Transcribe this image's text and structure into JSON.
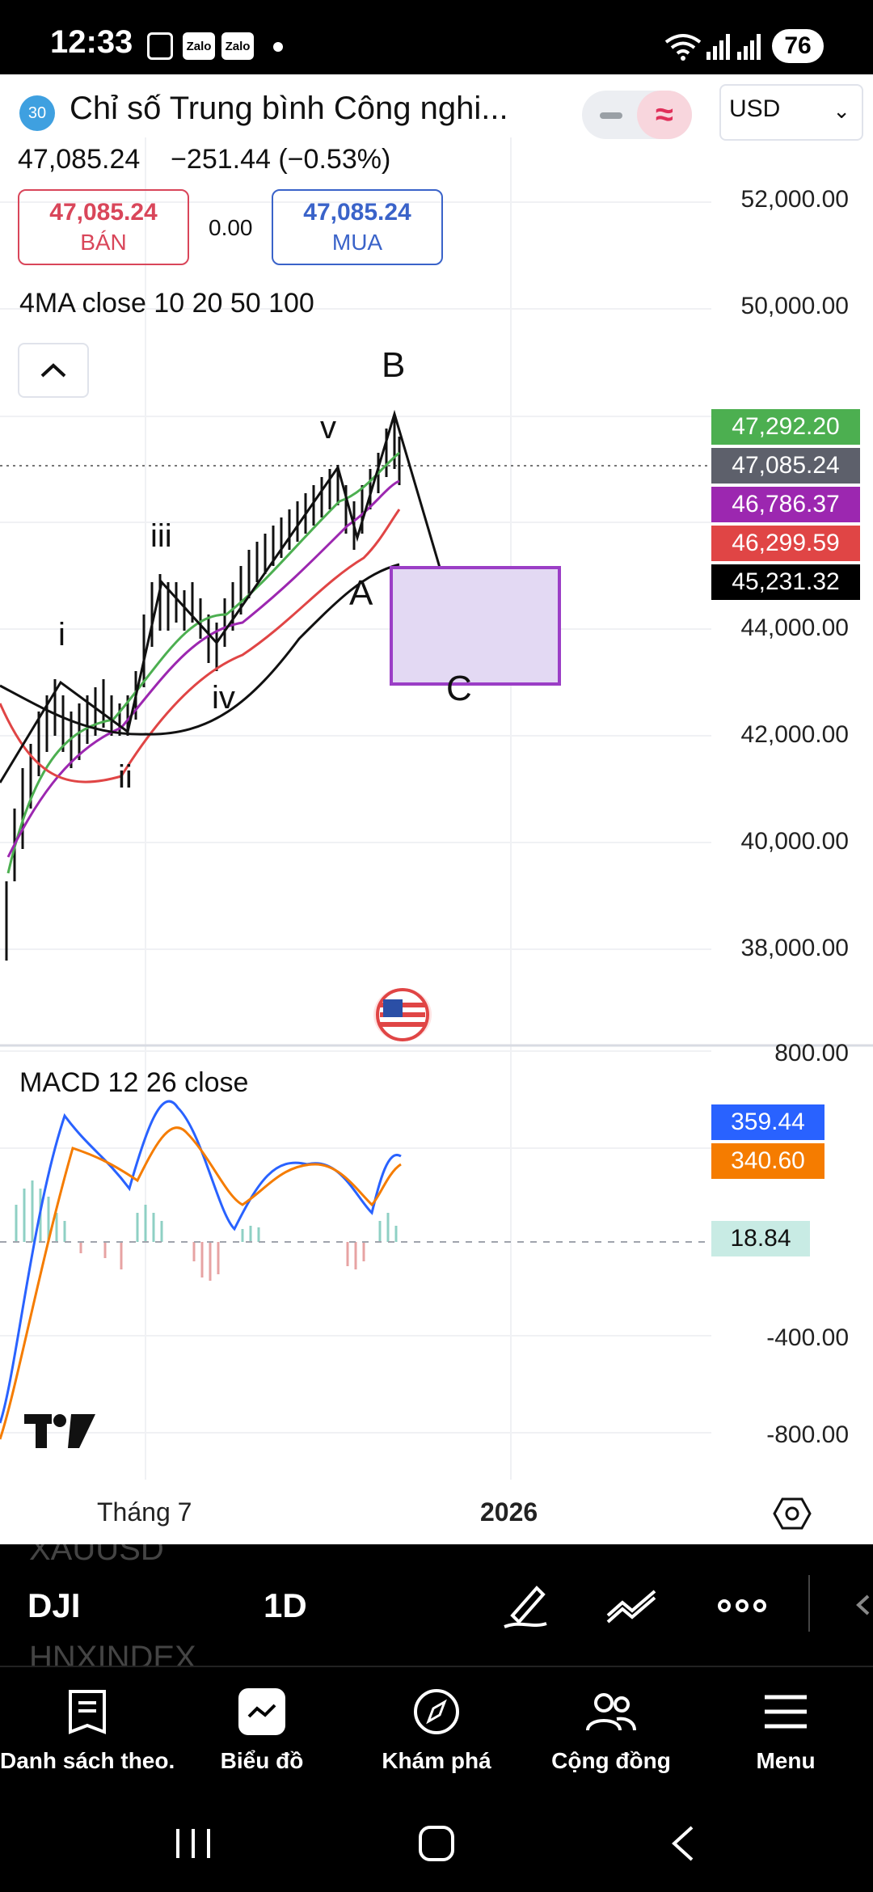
{
  "status_bar": {
    "time": "12:33",
    "notif_icons": [
      "screenshot-icon",
      "Zalo",
      "Zalo"
    ],
    "battery": "76"
  },
  "header": {
    "logo_text": "30",
    "title": "Chỉ số Trung bình Công nghi...",
    "currency": "USD",
    "price": "47,085.24",
    "change": "−251.44 (−0.53%)",
    "sell_price": "47,085.24",
    "sell_label": "BÁN",
    "buy_price": "47,085.24",
    "buy_label": "MUA",
    "spread": "0.00"
  },
  "main_chart": {
    "indicator": "4MA close 10 20 50 100",
    "price_levels": [
      "52,000.00",
      "50,000.00",
      "44,000.00",
      "42,000.00",
      "40,000.00",
      "38,000.00"
    ],
    "ma_tags": [
      {
        "value": "47,292.20",
        "color": "#4caf50"
      },
      {
        "value": "47,085.24",
        "color": "#5d606b"
      },
      {
        "value": "46,786.37",
        "color": "#9c27b0"
      },
      {
        "value": "46,299.59",
        "color": "#e04545"
      },
      {
        "value": "45,231.32",
        "color": "#000000"
      }
    ],
    "wave_labels": [
      "i",
      "ii",
      "iii",
      "iv",
      "v",
      "A",
      "B",
      "C"
    ]
  },
  "macd": {
    "indicator": "MACD 12 26 close",
    "levels": [
      "800.00",
      "-400.00",
      "-800.00"
    ],
    "macd_value": "359.44",
    "signal_value": "340.60",
    "hist_value": "18.84",
    "colors": {
      "macd": "#2962ff",
      "signal": "#f57c00",
      "hist_bg": "#c8ebe4"
    }
  },
  "x_axis": {
    "labels": [
      "Tháng 7",
      "2026"
    ]
  },
  "toolbar": {
    "ghost_top": "XAUUSD",
    "symbol": "DJI",
    "timeframe": "1D",
    "ghost_bottom": "HNXINDEX"
  },
  "bottom_nav": [
    {
      "label": "Danh sách theo...",
      "icon": "watchlist-icon"
    },
    {
      "label": "Biểu đồ",
      "icon": "chart-icon"
    },
    {
      "label": "Khám phá",
      "icon": "compass-icon"
    },
    {
      "label": "Cộng đồng",
      "icon": "community-icon"
    },
    {
      "label": "Menu",
      "icon": "menu-icon"
    }
  ]
}
